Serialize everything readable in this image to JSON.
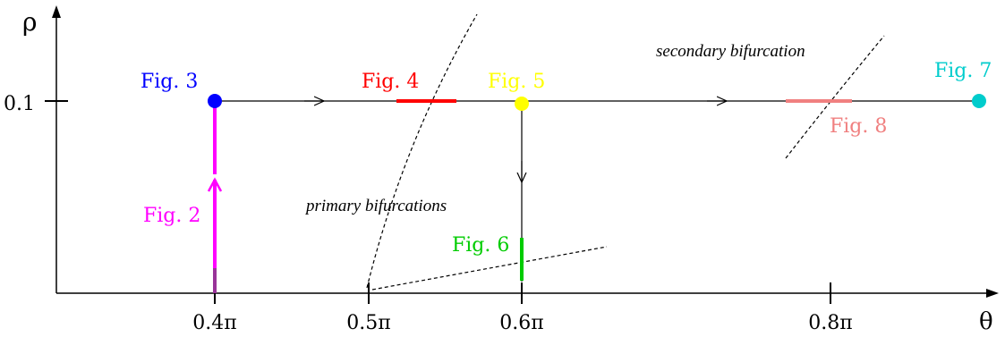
{
  "axes": {
    "x_label": "θ",
    "y_label": "ρ",
    "x_ticks": [
      "0.4π",
      "0.5π",
      "0.6π",
      "0.8π"
    ],
    "y_ticks": [
      "0.1"
    ]
  },
  "figures": {
    "fig2": {
      "label": "Fig. 2",
      "color": "#ff00ff"
    },
    "fig3": {
      "label": "Fig. 3",
      "color": "#0000ff"
    },
    "fig4": {
      "label": "Fig. 4",
      "color": "#ff0000"
    },
    "fig5": {
      "label": "Fig. 5",
      "color": "#ffff00"
    },
    "fig6": {
      "label": "Fig. 6",
      "color": "#00cc00"
    },
    "fig7": {
      "label": "Fig. 7",
      "color": "#00cccc"
    },
    "fig8": {
      "label": "Fig. 8",
      "color": "#f08080"
    }
  },
  "annotations": {
    "primary": "primary bifurcations",
    "secondary": "secondary bifurcation"
  }
}
